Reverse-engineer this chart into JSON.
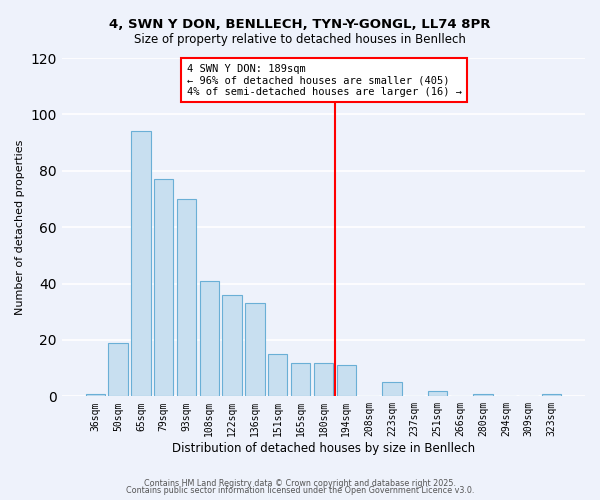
{
  "title": "4, SWN Y DON, BENLLECH, TYN-Y-GONGL, LL74 8PR",
  "subtitle": "Size of property relative to detached houses in Benllech",
  "xlabel": "Distribution of detached houses by size in Benllech",
  "ylabel": "Number of detached properties",
  "bar_labels": [
    "36sqm",
    "50sqm",
    "65sqm",
    "79sqm",
    "93sqm",
    "108sqm",
    "122sqm",
    "136sqm",
    "151sqm",
    "165sqm",
    "180sqm",
    "194sqm",
    "208sqm",
    "223sqm",
    "237sqm",
    "251sqm",
    "266sqm",
    "280sqm",
    "294sqm",
    "309sqm",
    "323sqm"
  ],
  "bar_values": [
    1,
    19,
    94,
    77,
    70,
    41,
    36,
    33,
    15,
    12,
    12,
    11,
    0,
    5,
    0,
    2,
    0,
    1,
    0,
    0,
    1
  ],
  "bar_color": "#c8dff0",
  "bar_edge_color": "#6aafd6",
  "vline_color": "red",
  "annotation_title": "4 SWN Y DON: 189sqm",
  "annotation_line1": "← 96% of detached houses are smaller (405)",
  "annotation_line2": "4% of semi-detached houses are larger (16) →",
  "ylim": [
    0,
    120
  ],
  "yticks": [
    0,
    20,
    40,
    60,
    80,
    100,
    120
  ],
  "footer1": "Contains HM Land Registry data © Crown copyright and database right 2025.",
  "footer2": "Contains public sector information licensed under the Open Government Licence v3.0.",
  "background_color": "#eef2fb",
  "grid_color": "white"
}
